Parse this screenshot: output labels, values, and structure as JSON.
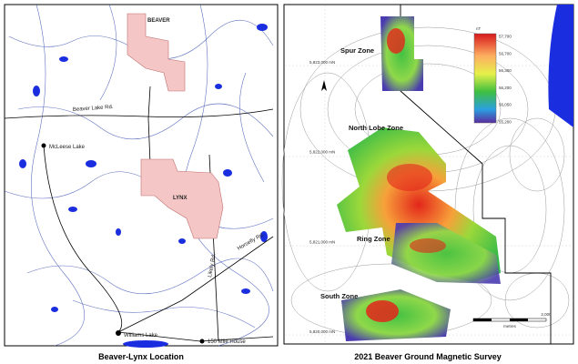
{
  "left_map": {
    "caption": "Beaver-Lynx Location",
    "claims": [
      "BEAVER",
      "LYNX"
    ],
    "places": [
      "Beaver Lake Rd.",
      "McLeese Lake",
      "Horsefly Rd.",
      "Likely Rd.",
      "Williams Lake",
      "150 Mile House"
    ]
  },
  "right_map": {
    "caption": "2021 Beaver Ground Magnetic Survey",
    "zones": [
      "Spur Zone",
      "North Lobe Zone",
      "Ring Zone",
      "South Zone"
    ],
    "legend": {
      "unit": "nT",
      "labels": [
        "57,700",
        "56,700",
        "56,300",
        "56,200",
        "56,050",
        "55,200"
      ]
    },
    "northings": [
      "5,823,000 mN",
      "5,822,000 mN",
      "5,821,000 mN",
      "5,820,000 mN"
    ],
    "scale": {
      "label": "2,000",
      "unit": "metres"
    }
  }
}
